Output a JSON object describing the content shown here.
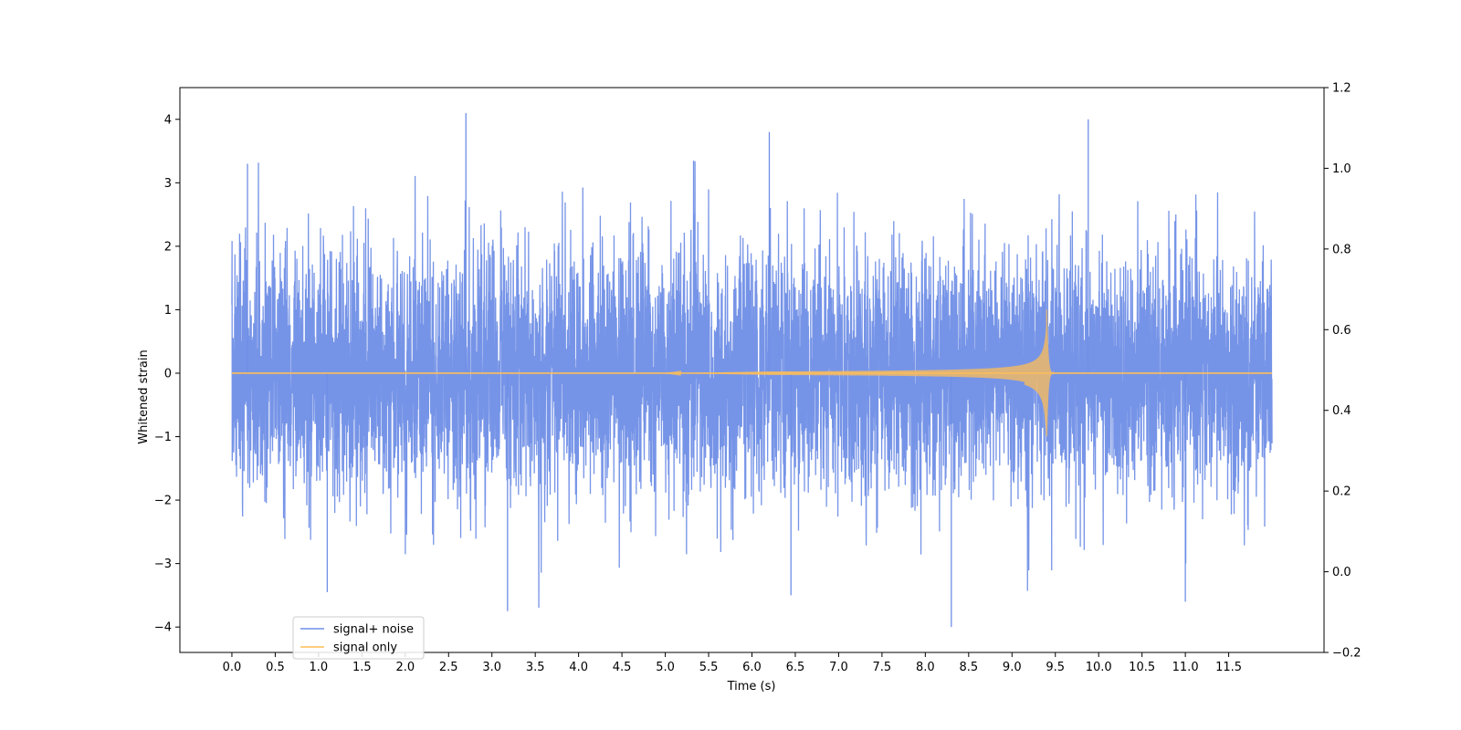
{
  "chart_data": {
    "type": "line",
    "xlabel": "Time (s)",
    "ylabel": "Whitened strain",
    "xlim": [
      -0.6,
      12.6
    ],
    "ylim": [
      -4.4,
      4.5
    ],
    "y2lim": [
      -0.2,
      1.2
    ],
    "x_ticks": [
      0.0,
      0.5,
      1.0,
      1.5,
      2.0,
      2.5,
      3.0,
      3.5,
      4.0,
      4.5,
      5.0,
      5.5,
      6.0,
      6.5,
      7.0,
      7.5,
      8.0,
      8.5,
      9.0,
      9.5,
      10.0,
      10.5,
      11.0,
      11.5
    ],
    "x_tick_labels": [
      "0.0",
      "0.5",
      "1.0",
      "1.5",
      "2.0",
      "2.5",
      "3.0",
      "3.5",
      "4.0",
      "4.5",
      "5.0",
      "5.5",
      "6.0",
      "6.5",
      "7.0",
      "7.5",
      "8.0",
      "8.5",
      "9.0",
      "9.5",
      "10.0",
      "10.5",
      "11.0",
      "11.5"
    ],
    "y_ticks": [
      -4,
      -3,
      -2,
      -1,
      0,
      1,
      2,
      3,
      4
    ],
    "y_tick_labels": [
      "−4",
      "−3",
      "−2",
      "−1",
      "0",
      "1",
      "2",
      "3",
      "4"
    ],
    "y2_ticks": [
      -0.2,
      0.0,
      0.2,
      0.4,
      0.6,
      0.8,
      1.0,
      1.2
    ],
    "y2_tick_labels": [
      "−0.2",
      "0.0",
      "0.2",
      "0.4",
      "0.6",
      "0.8",
      "1.0",
      "1.2"
    ],
    "legend_position": "lower-left",
    "series": [
      {
        "name": "signal+ noise",
        "color": "#6f8ee6",
        "time_range": [
          0.0,
          12.0
        ],
        "typical_range": [
          -2.0,
          2.0
        ],
        "peak_max": 4.1,
        "peak_min": -4.0
      },
      {
        "name": "signal only",
        "color": "#ffbe57",
        "time_range": [
          0.0,
          12.0
        ],
        "chirp_start": 5.0,
        "merger_time": 9.4,
        "peak_max": 1.0,
        "peak_min": -1.35
      }
    ]
  }
}
